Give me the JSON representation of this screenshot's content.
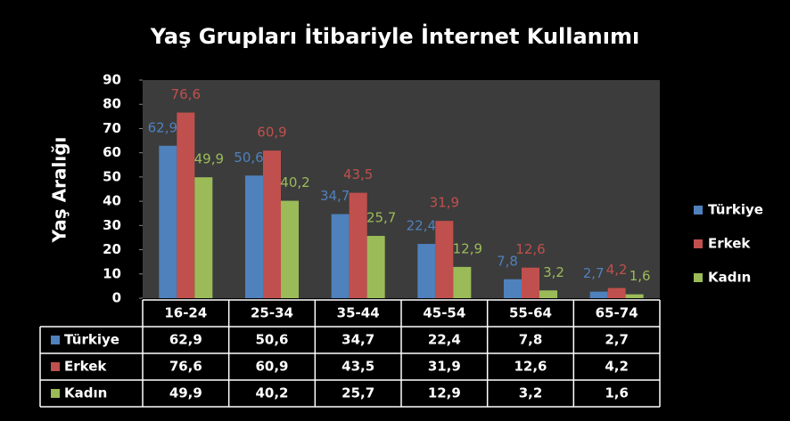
{
  "chart_data": {
    "type": "bar",
    "title": "Yaş Grupları İtibariyle İnternet Kullanımı",
    "y_label": "Yaş Aralığı",
    "categories": [
      "16-24",
      "25-34",
      "35-44",
      "45-54",
      "55-64",
      "65-74"
    ],
    "series": [
      {
        "name": "Türkiye",
        "color": "#4f81bd",
        "values": [
          62.9,
          50.6,
          34.7,
          22.4,
          7.8,
          2.7
        ],
        "value_labels": [
          "62,9",
          "50,6",
          "34,7",
          "22,4",
          "7,8",
          "2,7"
        ]
      },
      {
        "name": "Erkek",
        "color": "#c0504d",
        "values": [
          76.6,
          60.9,
          43.5,
          31.9,
          12.6,
          4.2
        ],
        "value_labels": [
          "76,6",
          "60,9",
          "43,5",
          "31,9",
          "12,6",
          "4,2"
        ]
      },
      {
        "name": "Kadın",
        "color": "#9bbb59",
        "values": [
          49.9,
          40.2,
          25.7,
          12.9,
          3.2,
          1.6
        ],
        "value_labels": [
          "49,9",
          "40,2",
          "25,7",
          "12,9",
          "3,2",
          "1,6"
        ]
      }
    ],
    "ylim": [
      0,
      90
    ],
    "yticks": [
      0,
      10,
      20,
      30,
      40,
      50,
      60,
      70,
      80,
      90
    ],
    "legend": "right"
  }
}
